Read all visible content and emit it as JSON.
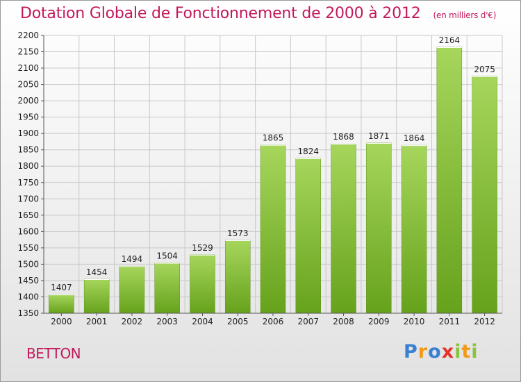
{
  "title": "Dotation Globale de Fonctionnement de 2000 à 2012",
  "unit_note": "(en milliers d'€)",
  "commune": "BETTON",
  "brand": {
    "text": "Proxiti",
    "letters": [
      "P",
      "r",
      "o",
      "x",
      "i",
      "t",
      "i"
    ]
  },
  "colors": {
    "title": "#c2185b",
    "bar_light": "#a6d65c",
    "bar_dark": "#66a21c",
    "grid": "#c8c8c8"
  },
  "chart_data": {
    "type": "bar",
    "title": "Dotation Globale de Fonctionnement de 2000 à 2012",
    "subtitle": "(en milliers d'€)",
    "xlabel": "",
    "ylabel": "",
    "categories": [
      "2000",
      "2001",
      "2002",
      "2003",
      "2004",
      "2005",
      "2006",
      "2007",
      "2008",
      "2009",
      "2010",
      "2011",
      "2012"
    ],
    "values": [
      1407,
      1454,
      1494,
      1504,
      1529,
      1573,
      1865,
      1824,
      1868,
      1871,
      1864,
      2164,
      2075
    ],
    "ylim": [
      1350,
      2200
    ],
    "ytick_step": 50,
    "grid": true,
    "data_labels": true
  }
}
